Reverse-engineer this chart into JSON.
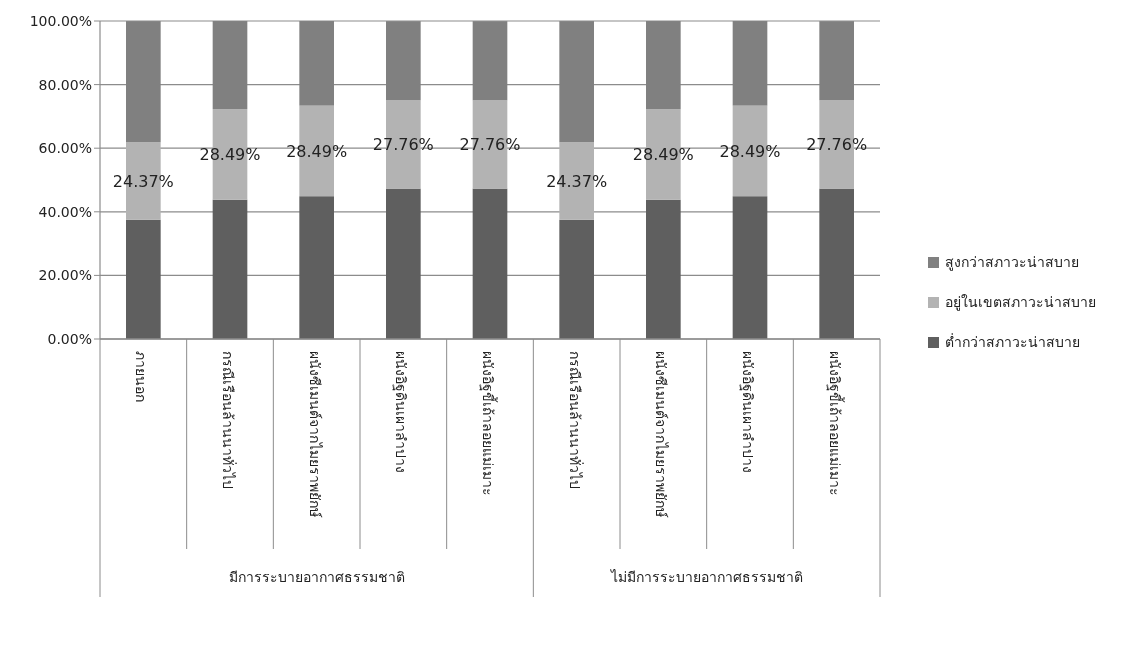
{
  "chart_data": {
    "type": "bar",
    "stacked": true,
    "categories": [
      "ภายนอก",
      "กรณีเรือนล้านนาทั่วไป",
      "ผนังซีเมนต์จากไมยราพยักษ์",
      "ผนังอิฐดินเผาลำปาง",
      "ผนังอิฐขี้เถ้าลอยแม่เมาะ",
      "กรณีเรือนล้านนาทั่วไป",
      "ผนังซีเมนต์จากไมยราพยักษ์",
      "ผนังอิฐดินเผาลำปาง",
      "ผนังอิฐขี้เถ้าลอยแม่เมาะ"
    ],
    "series": [
      {
        "name": "ต่ำกว่าสภาวะน่าสบาย",
        "color": "#5f5f5f",
        "values": [
          37.5,
          43.8,
          44.9,
          47.3,
          47.3,
          37.5,
          43.8,
          44.9,
          47.3
        ]
      },
      {
        "name": "อยู่ในเขตสภาวะน่าสบาย",
        "color": "#b3b3b3",
        "values": [
          24.37,
          28.49,
          28.49,
          27.76,
          27.76,
          24.37,
          28.49,
          28.49,
          27.76
        ],
        "value_labels": [
          "24.37%",
          "28.49%",
          "28.49%",
          "27.76%",
          "27.76%",
          "24.37%",
          "28.49%",
          "28.49%",
          "27.76%"
        ]
      },
      {
        "name": "สูงกว่าสภาวะน่าสบาย",
        "color": "#808080",
        "values": [
          38.1,
          27.7,
          26.6,
          24.9,
          24.9,
          38.1,
          27.7,
          26.6,
          24.9
        ]
      }
    ],
    "ylim": [
      0,
      100
    ],
    "yticks": [
      {
        "value": 0,
        "label": "0.00%"
      },
      {
        "value": 20,
        "label": "20.00%"
      },
      {
        "value": 40,
        "label": "40.00%"
      },
      {
        "value": 60,
        "label": "60.00%"
      },
      {
        "value": 80,
        "label": "80.00%"
      },
      {
        "value": 100,
        "label": "100.00%"
      }
    ],
    "grid": "y",
    "legend": "right",
    "annotations": [
      "มีการระบายอากาศธรรมชาติ",
      "ไม่มีการระบายอากาศธรรมชาติ"
    ]
  }
}
